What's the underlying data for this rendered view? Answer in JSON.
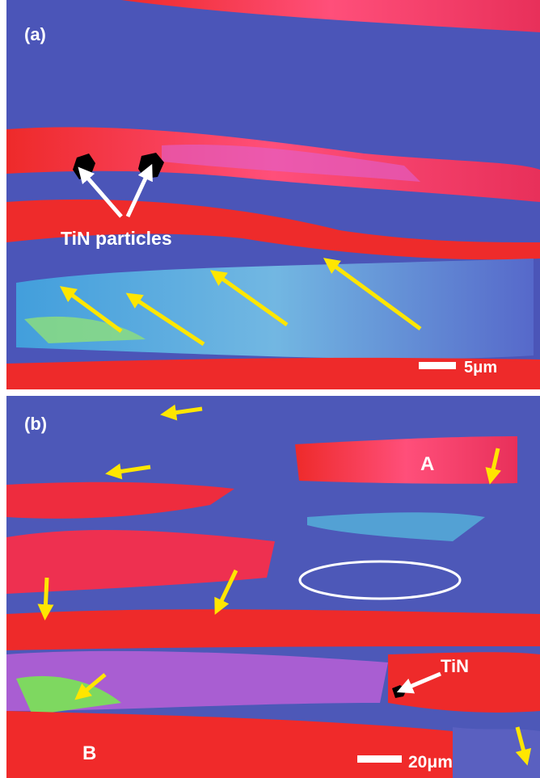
{
  "panels": [
    {
      "label": "(a)",
      "annotations": [
        "TiN particles"
      ],
      "scale_bar": "5μm"
    },
    {
      "label": "(b)",
      "annotations": [
        "A",
        "TiN",
        "B"
      ],
      "scale_bar": "20μm"
    }
  ]
}
